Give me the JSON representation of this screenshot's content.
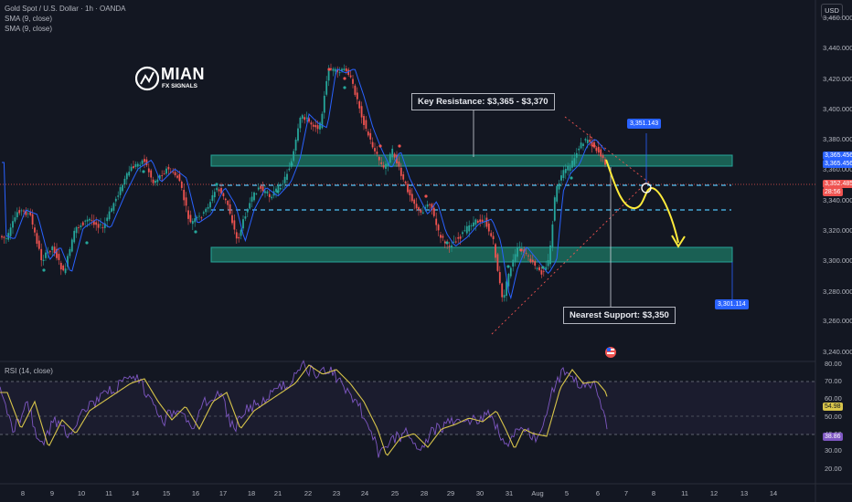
{
  "legend": {
    "symbol": "Gold Spot / U.S. Dollar · 1h · OANDA",
    "sma1": "SMA (9, close)",
    "sma2": "SMA (9, close)"
  },
  "currency": "USD",
  "price_axis": [
    "3,460.000",
    "3,440.000",
    "3,420.000",
    "3,400.000",
    "3,380.000",
    "3,360.000",
    "3,340.000",
    "3,320.000",
    "3,300.000",
    "3,280.000",
    "3,260.000",
    "3,240.000"
  ],
  "price_tags": {
    "sma_a": "3,365.456",
    "sma_b": "3,365.456",
    "last_price": "3,352.485",
    "countdown": "28:56",
    "target_high": "3,351.143",
    "target_low": "3,301.114"
  },
  "rsi": {
    "title": "RSI (14, close)",
    "axis": [
      "80.00",
      "70.00",
      "60.00",
      "50.00",
      "40.00",
      "30.00",
      "20.00"
    ],
    "value_yellow": "54.98",
    "value_purple": "38.86"
  },
  "dates": [
    "8",
    "9",
    "10",
    "11",
    "14",
    "15",
    "16",
    "17",
    "18",
    "21",
    "22",
    "23",
    "24",
    "25",
    "28",
    "29",
    "30",
    "31",
    "Aug",
    "5",
    "6",
    "7",
    "8",
    "11",
    "12",
    "13",
    "14"
  ],
  "annotations": {
    "resistance": "Key Resistance: $3,365 - $3,370",
    "support": "Nearest Support: $3,350"
  },
  "logo": {
    "name": "MIAN",
    "sub": "FX SIGNALS"
  },
  "colors": {
    "background": "#131722",
    "zone_fill": "#1e7a66",
    "zone_border": "#26a69a",
    "bull": "#26a69a",
    "bear": "#ef5350",
    "sma_line": "#2962ff",
    "projection": "#ffeb3b",
    "rsi_line": "#7e57c2",
    "rsi_ma": "#d7c44a",
    "blue_tag": "#2962ff"
  }
}
